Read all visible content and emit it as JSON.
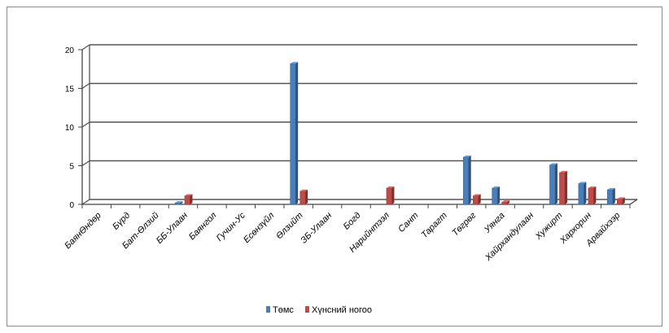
{
  "chart_data": {
    "type": "bar",
    "categories": [
      "БаянӨндөр",
      "Бүрд",
      "Бат-Өлзий",
      "ББ-Улаан",
      "Баянгол",
      "Гучин-Ус",
      "Есөнзүйл",
      "Өлзийт",
      "ЗБ-Улаан",
      "Богд",
      "Нарийнтээл",
      "Сант",
      "Тарагт",
      "Төгрөг",
      "Уянга",
      "Хайрхандулаан",
      "Хужирт",
      "Хархорин",
      "Арвайхээр"
    ],
    "series": [
      {
        "name": "Төмс",
        "color": "#4a7ebb",
        "values": [
          0,
          0,
          0,
          0.2,
          0,
          0,
          0,
          18.2,
          0,
          0,
          0,
          0,
          0,
          6.1,
          2.1,
          0,
          5.1,
          2.7,
          1.9
        ]
      },
      {
        "name": "Хүнсний ногоо",
        "color": "#be4b48",
        "values": [
          0,
          0,
          0,
          1.1,
          0,
          0,
          0,
          1.7,
          0,
          0,
          2.1,
          0,
          0,
          1.1,
          0.3,
          0,
          4.1,
          2.1,
          0.7
        ]
      }
    ],
    "yticks": [
      "0",
      "5",
      "10",
      "15",
      "20"
    ],
    "ylim": [
      0,
      20
    ],
    "grid": true,
    "legend_position": "bottom",
    "chart_style": "3d-clustered-column"
  }
}
